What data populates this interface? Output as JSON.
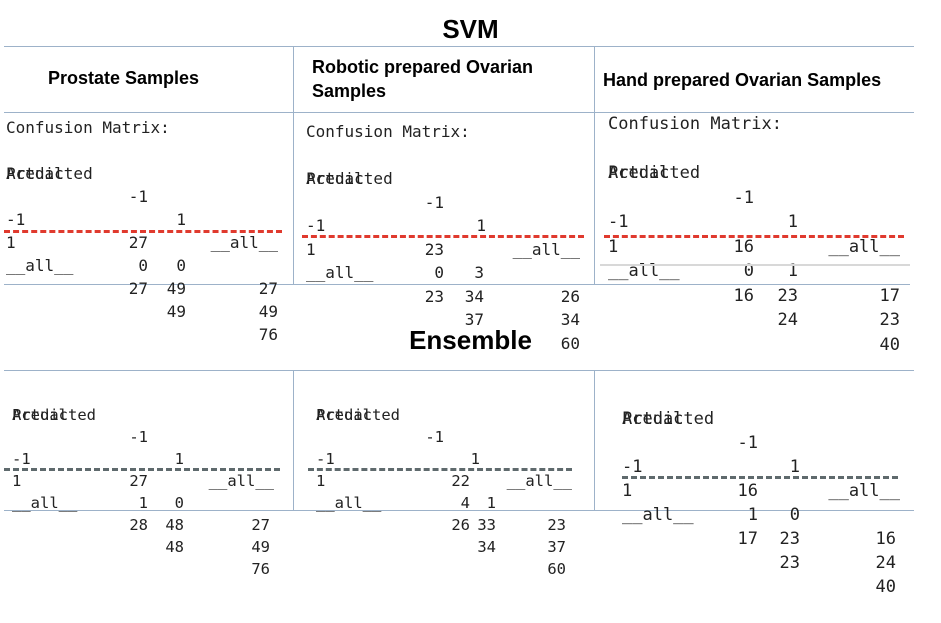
{
  "svm": {
    "title": "SVM",
    "headers": [
      "Prostate Samples",
      "Robotic prepared Ovarian Samples",
      "Hand prepared Ovarian Samples"
    ],
    "matrices": [
      {
        "caption": "Confusion Matrix:",
        "predicted_label": "Predicted",
        "actual_label": "Actual",
        "col_labels": [
          "-1",
          "1",
          "__all__"
        ],
        "rows": [
          {
            "label": "-1",
            "values": [
              "27",
              "0",
              "27"
            ]
          },
          {
            "label": "1",
            "values": [
              "0",
              "49",
              "49"
            ]
          },
          {
            "label": "__all__",
            "values": [
              "27",
              "49",
              "76"
            ]
          }
        ]
      },
      {
        "caption": "Confusion Matrix:",
        "predicted_label": "Predicted",
        "actual_label": "Actual",
        "col_labels": [
          "-1",
          "1",
          "__all__"
        ],
        "rows": [
          {
            "label": "-1",
            "values": [
              "23",
              "3",
              "26"
            ]
          },
          {
            "label": "1",
            "values": [
              "0",
              "34",
              "34"
            ]
          },
          {
            "label": "__all__",
            "values": [
              "23",
              "37",
              "60"
            ]
          }
        ]
      },
      {
        "caption": "Confusion Matrix:",
        "predicted_label": "Predicted",
        "actual_label": "Actual",
        "col_labels": [
          "-1",
          "1",
          "__all__"
        ],
        "rows": [
          {
            "label": "-1",
            "values": [
              "16",
              "1",
              "17"
            ]
          },
          {
            "label": "1",
            "values": [
              "0",
              "23",
              "23"
            ]
          },
          {
            "label": "__all__",
            "values": [
              "16",
              "24",
              "40"
            ]
          }
        ]
      }
    ]
  },
  "ensemble": {
    "title": "Ensemble",
    "matrices": [
      {
        "predicted_label": "Predicted",
        "actual_label": "Actual",
        "col_labels": [
          "-1",
          "1",
          "__all__"
        ],
        "rows": [
          {
            "label": "-1",
            "values": [
              "27",
              "0",
              "27"
            ]
          },
          {
            "label": "1",
            "values": [
              "1",
              "48",
              "49"
            ]
          },
          {
            "label": "__all__",
            "values": [
              "28",
              "48",
              "76"
            ]
          }
        ]
      },
      {
        "predicted_label": "Predicted",
        "actual_label": "Actual",
        "col_labels": [
          "-1",
          "1",
          "__all__"
        ],
        "rows": [
          {
            "label": "-1",
            "values": [
              "22",
              "1",
              "23"
            ]
          },
          {
            "label": "1",
            "values": [
              "4",
              "33",
              "37"
            ]
          },
          {
            "label": "__all__",
            "values": [
              "26",
              "34",
              "60"
            ]
          }
        ]
      },
      {
        "predicted_label": "Predicted",
        "actual_label": "Actual",
        "col_labels": [
          "-1",
          "1",
          "__all__"
        ],
        "rows": [
          {
            "label": "-1",
            "values": [
              "16",
              "0",
              "16"
            ]
          },
          {
            "label": "1",
            "values": [
              "1",
              "23",
              "24"
            ]
          },
          {
            "label": "__all__",
            "values": [
              "17",
              "23",
              "40"
            ]
          }
        ]
      }
    ]
  },
  "colors": {
    "separator_svm": "#e03a2e",
    "separator_ensemble": "#5f6a6d",
    "grid": "#9db2c9"
  }
}
